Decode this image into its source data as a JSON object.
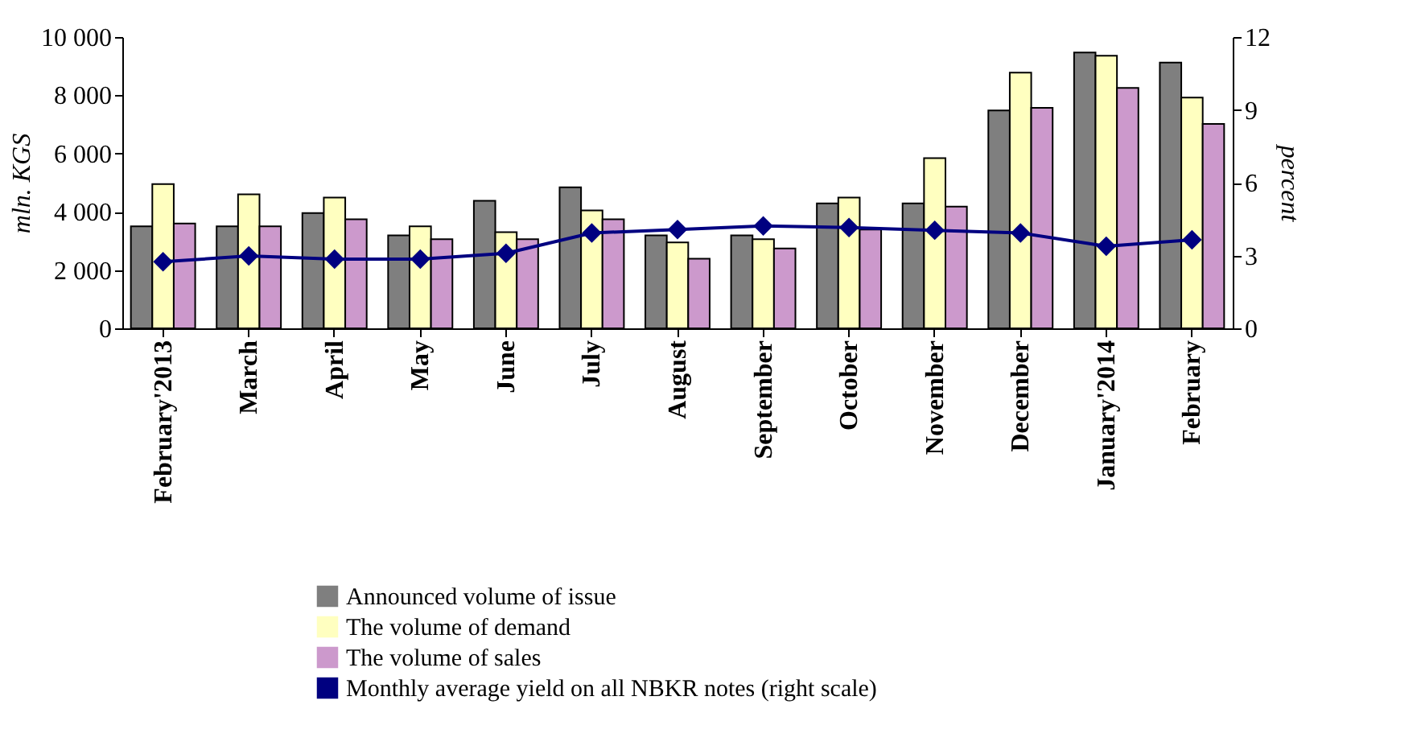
{
  "chart_data": {
    "type": "bar",
    "categories": [
      "February'2013",
      "March",
      "April",
      "May",
      "June",
      "July",
      "August",
      "September",
      "October",
      "November",
      "December",
      "January'2014",
      "February"
    ],
    "ylabel": "mln. KGS",
    "y2label": "percent",
    "ylim": [
      0,
      10000
    ],
    "yticks": [
      {
        "value": 0,
        "label": "0"
      },
      {
        "value": 2000,
        "label": "2 000"
      },
      {
        "value": 4000,
        "label": "4 000"
      },
      {
        "value": 6000,
        "label": "6 000"
      },
      {
        "value": 8000,
        "label": "8 000"
      },
      {
        "value": 10000,
        "label": "10 000"
      }
    ],
    "y2lim": [
      0,
      12
    ],
    "y2ticks": [
      0,
      3,
      6,
      9,
      12
    ],
    "legend": "bottom",
    "grid": false,
    "series": [
      {
        "name": "Announced volume of issue",
        "color": "#7f7f7f",
        "values": [
          3500,
          3500,
          3960,
          3190,
          4380,
          4840,
          3190,
          3190,
          4290,
          4290,
          7480,
          9470,
          9120
        ]
      },
      {
        "name": "The volume of demand",
        "color": "#ffffc0",
        "values": [
          4950,
          4600,
          4490,
          3500,
          3300,
          4050,
          2950,
          3060,
          4490,
          5840,
          8780,
          9360,
          7920
        ]
      },
      {
        "name": "The volume of sales",
        "color": "#cc99cc",
        "values": [
          3600,
          3500,
          3740,
          3060,
          3060,
          3740,
          2390,
          2740,
          3390,
          4180,
          7570,
          8250,
          7020
        ]
      },
      {
        "name": "Monthly average yield on all NBKR notes (right scale)",
        "type": "line",
        "axis": "y2",
        "marker": "diamond",
        "color": "#000080",
        "values": [
          2.74,
          2.98,
          2.85,
          2.85,
          3.09,
          3.93,
          4.07,
          4.22,
          4.15,
          4.04,
          3.93,
          3.38,
          3.65
        ]
      }
    ]
  }
}
